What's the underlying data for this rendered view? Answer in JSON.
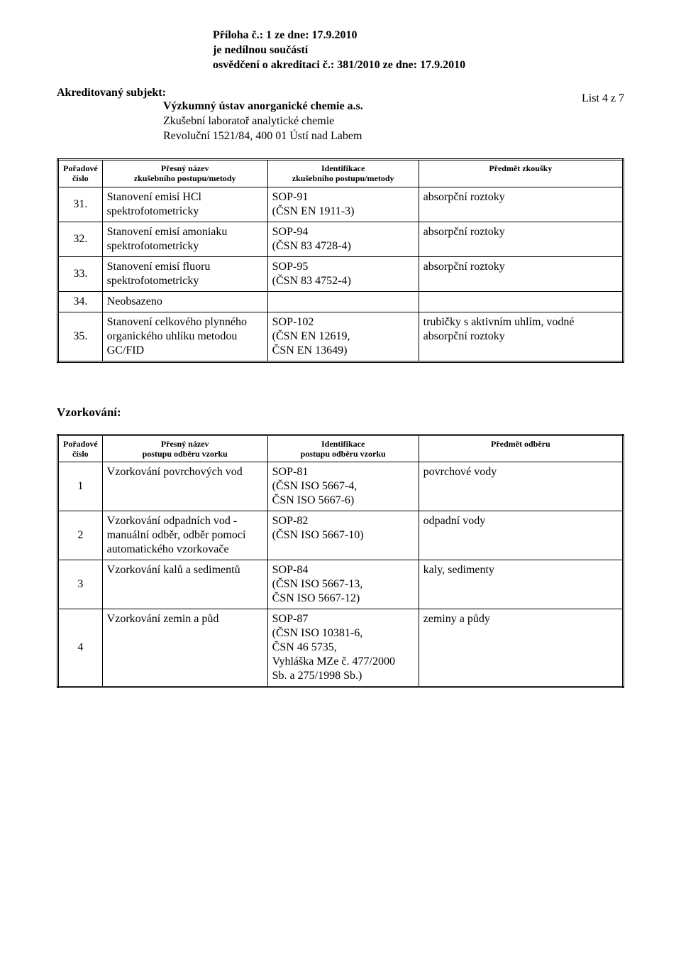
{
  "header": {
    "line1": "Příloha č.: 1   ze dne: 17.9.2010",
    "line2": "je nedílnou součástí",
    "line3": "osvědčení o akreditaci č.: 381/2010   ze dne: 17.9.2010"
  },
  "list_label": "List 4 z 7",
  "subject_heading": "Akreditovaný subjekt:",
  "subject_name": "Výzkumný ústav anorganické chemie a.s.",
  "subject_lab": "Zkušební laboratoř analytické chemie",
  "subject_addr": "Revoluční 1521/84, 400 01 Ústí nad Labem",
  "table1": {
    "headers": {
      "col1a": "Pořadové",
      "col1b": "číslo",
      "col2a": "Přesný název",
      "col2b": "zkušebního postupu/metody",
      "col3a": "Identifikace",
      "col3b": "zkušebního postupu/metody",
      "col4": "Předmět zkoušky"
    },
    "rows": [
      {
        "num": "31.",
        "name": "Stanovení emisí HCl spektrofotometricky",
        "ident": "SOP-91\n(ČSN EN 1911-3)",
        "subj": "absorpční roztoky"
      },
      {
        "num": "32.",
        "name": "Stanovení emisí amoniaku spektrofotometricky",
        "ident": "SOP-94\n(ČSN 83 4728-4)",
        "subj": "absorpční roztoky"
      },
      {
        "num": "33.",
        "name": "Stanovení emisí fluoru spektrofotometricky",
        "ident": "SOP-95\n(ČSN 83 4752-4)",
        "subj": "absorpční roztoky"
      },
      {
        "num": "34.",
        "name": "Neobsazeno",
        "ident": "",
        "subj": ""
      },
      {
        "num": "35.",
        "name": "Stanovení celkového plynného organického uhlíku metodou GC/FID",
        "ident": "SOP-102\n(ČSN EN 12619,\nČSN EN 13649)",
        "subj": "trubičky s aktivním uhlím, vodné absorpční roztoky"
      }
    ]
  },
  "vzorkovani_title": "Vzorkování:",
  "table2": {
    "headers": {
      "col1a": "Pořadové",
      "col1b": "číslo",
      "col2a": "Přesný název",
      "col2b": "postupu odběru vzorku",
      "col3a": "Identifikace",
      "col3b": "postupu odběru vzorku",
      "col4": "Předmět odběru"
    },
    "rows": [
      {
        "num": "1",
        "name": "Vzorkování povrchových vod",
        "ident": "SOP-81\n(ČSN ISO 5667-4,\nČSN ISO 5667-6)",
        "subj": "povrchové vody"
      },
      {
        "num": "2",
        "name": "Vzorkování odpadních vod - manuální odběr, odběr pomocí automatického vzorkovače",
        "ident": "SOP-82\n(ČSN ISO 5667-10)",
        "subj": "odpadní vody"
      },
      {
        "num": "3",
        "name": "Vzorkování kalů a sedimentů",
        "ident": "SOP-84\n(ČSN ISO 5667-13,\nČSN ISO 5667-12)",
        "subj": "kaly, sedimenty"
      },
      {
        "num": "4",
        "name": "Vzorkování zemin a půd",
        "ident": "SOP-87\n(ČSN ISO 10381-6,\nČSN 46 5735,\nVyhláška MZe č. 477/2000\nSb. a 275/1998 Sb.)",
        "subj": "zeminy a půdy"
      }
    ]
  }
}
